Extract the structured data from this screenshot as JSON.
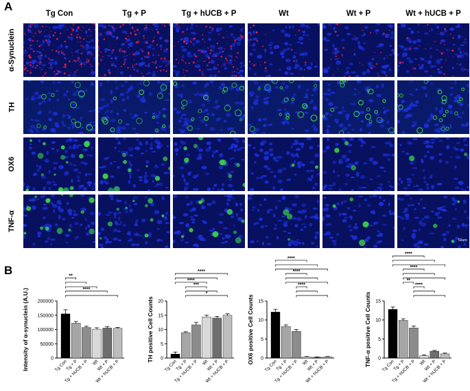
{
  "panel_a_label": "A",
  "panel_b_label": "B",
  "columns": [
    "Tg Con",
    "Tg + P",
    "Tg + hUCB + P",
    "Wt",
    "Wt + P",
    "Wt + hUCB + P"
  ],
  "rows": [
    "α-Synuclein",
    "TH",
    "OX6",
    "TNF-α"
  ],
  "scale_bar_label": "50um",
  "colors": {
    "bar_fills": [
      "#000000",
      "#a6a6a6",
      "#8c8c8c",
      "#d9d9d9",
      "#6e6e6e",
      "#bdbdbd"
    ],
    "nuclei": "#1a2fd6",
    "alpha_syn": "#e0204a",
    "marker_green": "#3dd64a"
  },
  "chart_data": [
    {
      "type": "bar",
      "categories": [
        "Tg Con",
        "Tg + P",
        "Tg + hUCB + P",
        "Wt",
        "Wt + P",
        "Wt + hUCB + P"
      ],
      "values": [
        155000,
        122000,
        107000,
        101000,
        105000,
        104000
      ],
      "errors": [
        14000,
        6000,
        4500,
        5000,
        5000,
        3500
      ],
      "ylabel": "Intensity of α-synuclein (A.U.)",
      "ylim": [
        0,
        200000
      ],
      "yticks": [
        0,
        50000,
        100000,
        150000,
        200000
      ],
      "ytick_labels": [
        "0",
        "50000",
        "100000",
        "150000",
        "200000"
      ],
      "significance": [
        {
          "from": 0,
          "to": 1,
          "label": "**"
        },
        {
          "from": 0,
          "to": 2,
          "label": ""
        },
        {
          "from": 0,
          "to": 3,
          "label": ""
        },
        {
          "from": 0,
          "to": 4,
          "label": "****"
        },
        {
          "from": 0,
          "to": 5,
          "label": ""
        }
      ]
    },
    {
      "type": "bar",
      "categories": [
        "Tg Con",
        "Tg + P",
        "Tg + hUCB + P",
        "Wt",
        "Wt + P",
        "Wt + hUCB + P"
      ],
      "values": [
        1.4,
        8.9,
        11.6,
        14.4,
        14.0,
        15.0
      ],
      "errors": [
        0.7,
        0.3,
        0.9,
        0.6,
        0.6,
        0.5
      ],
      "ylabel": "TH positive Cell Counts",
      "ylim": [
        0,
        20
      ],
      "yticks": [
        0,
        5,
        10,
        15,
        20
      ],
      "ytick_labels": [
        "0",
        "5",
        "10",
        "15",
        "20"
      ],
      "significance": [
        {
          "from": 0,
          "to": 5,
          "label": "****"
        },
        {
          "from": 0,
          "to": 4,
          "label": ""
        },
        {
          "from": 0,
          "to": 3,
          "label": "****"
        },
        {
          "from": 1,
          "to": 3,
          "label": "***"
        },
        {
          "from": 1,
          "to": 4,
          "label": ""
        },
        {
          "from": 1,
          "to": 5,
          "label": "*"
        }
      ]
    },
    {
      "type": "bar",
      "categories": [
        "Tg Con",
        "Tg + P",
        "Tg + hUCB + P",
        "Wt",
        "Wt + P",
        "Wt + hUCB + P"
      ],
      "values": [
        12.1,
        8.3,
        7.0,
        0.3,
        0.2,
        0.3
      ],
      "errors": [
        0.7,
        0.4,
        0.5,
        0.1,
        0.1,
        0.1
      ],
      "ylabel": "OX6 positive Cell Counts",
      "ylim": [
        0,
        15
      ],
      "yticks": [
        0,
        5,
        10,
        15
      ],
      "ytick_labels": [
        "0",
        "5",
        "10",
        "15"
      ],
      "significance": [
        {
          "from": 0,
          "to": 3,
          "label": "****"
        },
        {
          "from": 0,
          "to": 4,
          "label": ""
        },
        {
          "from": 0,
          "to": 5,
          "label": ""
        },
        {
          "from": 1,
          "to": 3,
          "label": "****"
        },
        {
          "from": 1,
          "to": 4,
          "label": ""
        },
        {
          "from": 1,
          "to": 5,
          "label": ""
        },
        {
          "from": 2,
          "to": 3,
          "label": "****"
        },
        {
          "from": 2,
          "to": 4,
          "label": ""
        },
        {
          "from": 2,
          "to": 5,
          "label": ""
        }
      ]
    },
    {
      "type": "bar",
      "categories": [
        "Tg Con",
        "Tg + P",
        "Tg + hUCB + P",
        "Wt",
        "Wt + P",
        "Wt + hUCB + P"
      ],
      "values": [
        12.8,
        9.9,
        7.9,
        0.6,
        1.8,
        1.1
      ],
      "errors": [
        0.6,
        0.4,
        0.5,
        0.2,
        0.2,
        0.2
      ],
      "ylabel": "TNF-α positive Cell Counts",
      "ylim": [
        0,
        15
      ],
      "yticks": [
        0,
        5,
        10,
        15
      ],
      "ytick_labels": [
        "0",
        "5",
        "10",
        "15"
      ],
      "significance": [
        {
          "from": 0,
          "to": 3,
          "label": "****"
        },
        {
          "from": 0,
          "to": 4,
          "label": ""
        },
        {
          "from": 0,
          "to": 5,
          "label": ""
        },
        {
          "from": 1,
          "to": 3,
          "label": "****"
        },
        {
          "from": 1,
          "to": 4,
          "label": ""
        },
        {
          "from": 1,
          "to": 5,
          "label": ""
        },
        {
          "from": 1,
          "to": 2,
          "label": "**"
        },
        {
          "from": 2,
          "to": 3,
          "label": "****"
        },
        {
          "from": 2,
          "to": 4,
          "label": ""
        },
        {
          "from": 2,
          "to": 5,
          "label": ""
        }
      ]
    }
  ]
}
